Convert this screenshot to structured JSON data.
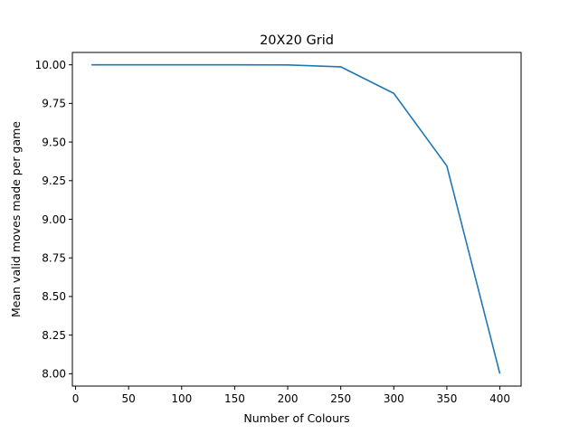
{
  "chart_data": {
    "type": "line",
    "title": "20X20 Grid",
    "xlabel": "Number of Colours",
    "ylabel": "Mean valid moves made per game",
    "xlim": [
      -3,
      420
    ],
    "ylim": [
      7.92,
      10.08
    ],
    "xticks": [
      0,
      50,
      100,
      150,
      200,
      250,
      300,
      350,
      400
    ],
    "yticks": [
      8.0,
      8.25,
      8.5,
      8.75,
      9.0,
      9.25,
      9.5,
      9.75,
      10.0
    ],
    "xtick_labels": [
      "0",
      "50",
      "100",
      "150",
      "200",
      "250",
      "300",
      "350",
      "400"
    ],
    "ytick_labels": [
      "8.00",
      "8.25",
      "8.50",
      "8.75",
      "9.00",
      "9.25",
      "9.50",
      "9.75",
      "10.00"
    ],
    "grid": false,
    "series": [
      {
        "color": "#1f77b4",
        "x": [
          15,
          50,
          100,
          150,
          200,
          250,
          300,
          350,
          400
        ],
        "y": [
          10.0,
          10.0,
          10.0,
          10.0,
          9.999,
          9.987,
          9.815,
          9.345,
          8.0
        ]
      }
    ]
  }
}
